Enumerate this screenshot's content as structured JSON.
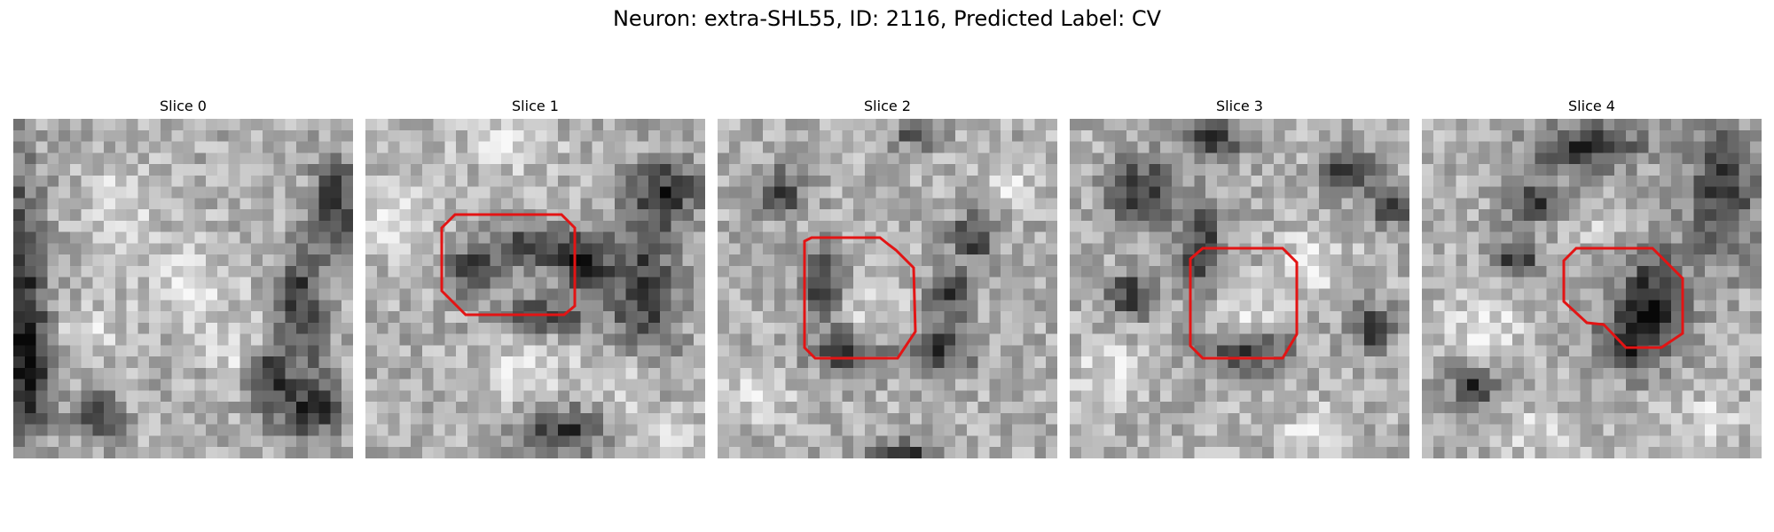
{
  "figure": {
    "title": "Neuron: extra-SHL55, ID: 2116, Predicted Label: CV",
    "contour_color": "#e31414",
    "panels": [
      {
        "title": "Slice 0",
        "seed": 11,
        "contour": ""
      },
      {
        "title": "Slice 1",
        "seed": 23,
        "contour": "outline-1"
      },
      {
        "title": "Slice 2",
        "seed": 37,
        "contour": "outline-2"
      },
      {
        "title": "Slice 3",
        "seed": 41,
        "contour": "outline-3"
      },
      {
        "title": "Slice 4",
        "seed": 53,
        "contour": "outline-4"
      }
    ]
  }
}
